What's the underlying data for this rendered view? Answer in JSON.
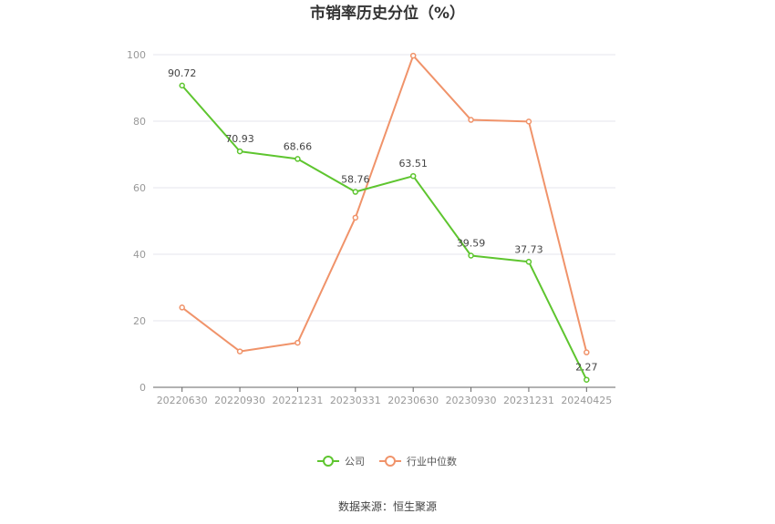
{
  "chart_data": {
    "type": "line",
    "title": "市销率历史分位（%）",
    "categories": [
      "20220630",
      "20220930",
      "20221231",
      "20230331",
      "20230630",
      "20230930",
      "20231231",
      "20240425"
    ],
    "series": [
      {
        "name": "公司",
        "color": "#5ec52f",
        "values": [
          90.72,
          70.93,
          68.66,
          58.76,
          63.51,
          39.59,
          37.73,
          2.27
        ],
        "show_labels": true
      },
      {
        "name": "行业中位数",
        "color": "#f0936a",
        "values": [
          24.0,
          10.8,
          13.4,
          51.0,
          99.7,
          80.4,
          79.9,
          10.5
        ],
        "show_labels": false
      }
    ],
    "ylim": [
      0,
      100
    ],
    "yticks": [
      0,
      20,
      40,
      60,
      80,
      100
    ],
    "grid": true,
    "legend_position": "bottom-center"
  },
  "source_text": "数据来源：恒生聚源"
}
